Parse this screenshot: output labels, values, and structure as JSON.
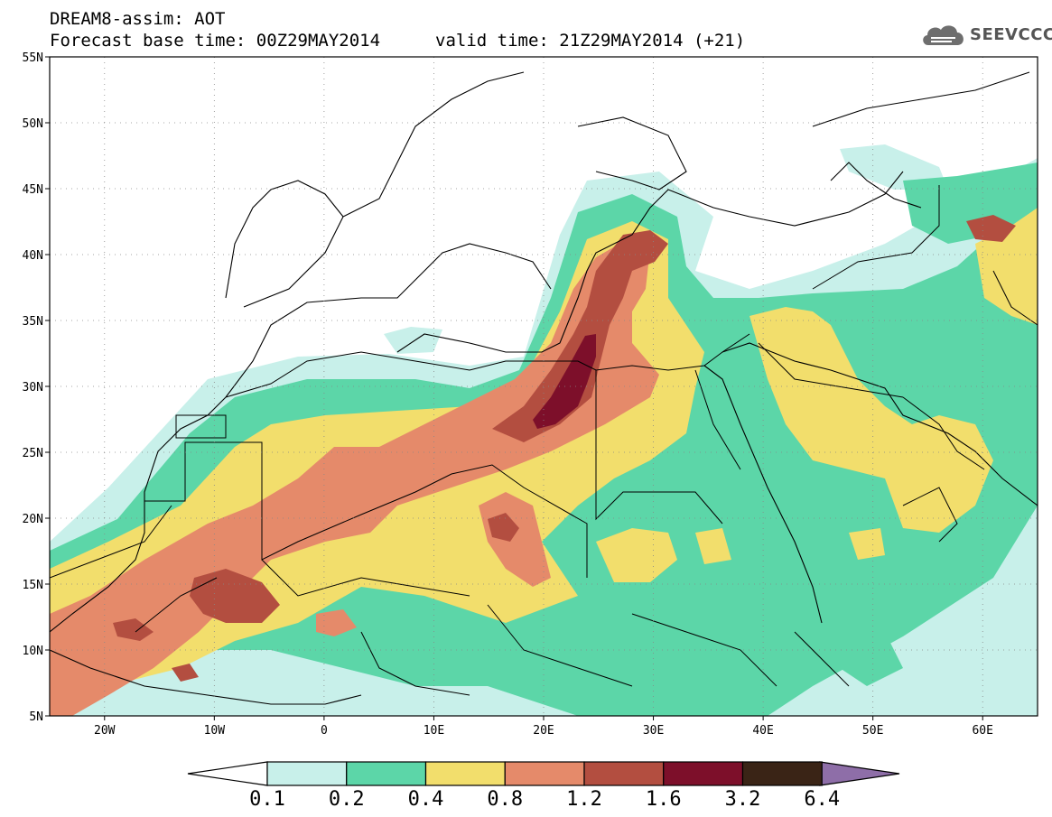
{
  "header": {
    "title": "DREAM8-assim: AOT",
    "base_time": "Forecast base time: 00Z29MAY2014",
    "valid_time": "valid time: 21Z29MAY2014 (+21)",
    "brand": "SEEVCCC",
    "brand_icon": "cloud-logo-icon"
  },
  "map": {
    "lon_range": [
      -25,
      65
    ],
    "lat_range": [
      5,
      55
    ],
    "lon_ticks": [
      {
        "value": -20,
        "label": "20W"
      },
      {
        "value": -10,
        "label": "10W"
      },
      {
        "value": 0,
        "label": "0"
      },
      {
        "value": 10,
        "label": "10E"
      },
      {
        "value": 20,
        "label": "20E"
      },
      {
        "value": 30,
        "label": "30E"
      },
      {
        "value": 40,
        "label": "40E"
      },
      {
        "value": 50,
        "label": "50E"
      },
      {
        "value": 60,
        "label": "60E"
      }
    ],
    "lat_ticks": [
      {
        "value": 5,
        "label": "5N"
      },
      {
        "value": 10,
        "label": "10N"
      },
      {
        "value": 15,
        "label": "15N"
      },
      {
        "value": 20,
        "label": "20N"
      },
      {
        "value": 25,
        "label": "25N"
      },
      {
        "value": 30,
        "label": "30N"
      },
      {
        "value": 35,
        "label": "35N"
      },
      {
        "value": 40,
        "label": "40N"
      },
      {
        "value": 45,
        "label": "45N"
      },
      {
        "value": 50,
        "label": "50N"
      },
      {
        "value": 55,
        "label": "55N"
      }
    ],
    "grid": true,
    "field": "aerosol optical thickness"
  },
  "colorbar": {
    "levels": [
      "0.1",
      "0.2",
      "0.4",
      "0.8",
      "1.2",
      "1.6",
      "3.2",
      "6.4"
    ],
    "colors": [
      "#ffffff",
      "#c8f0ea",
      "#5cd6a8",
      "#f2de6c",
      "#e58a6a",
      "#b34e40",
      "#7d0f2a",
      "#3a2416",
      "#8e6ea8"
    ]
  }
}
